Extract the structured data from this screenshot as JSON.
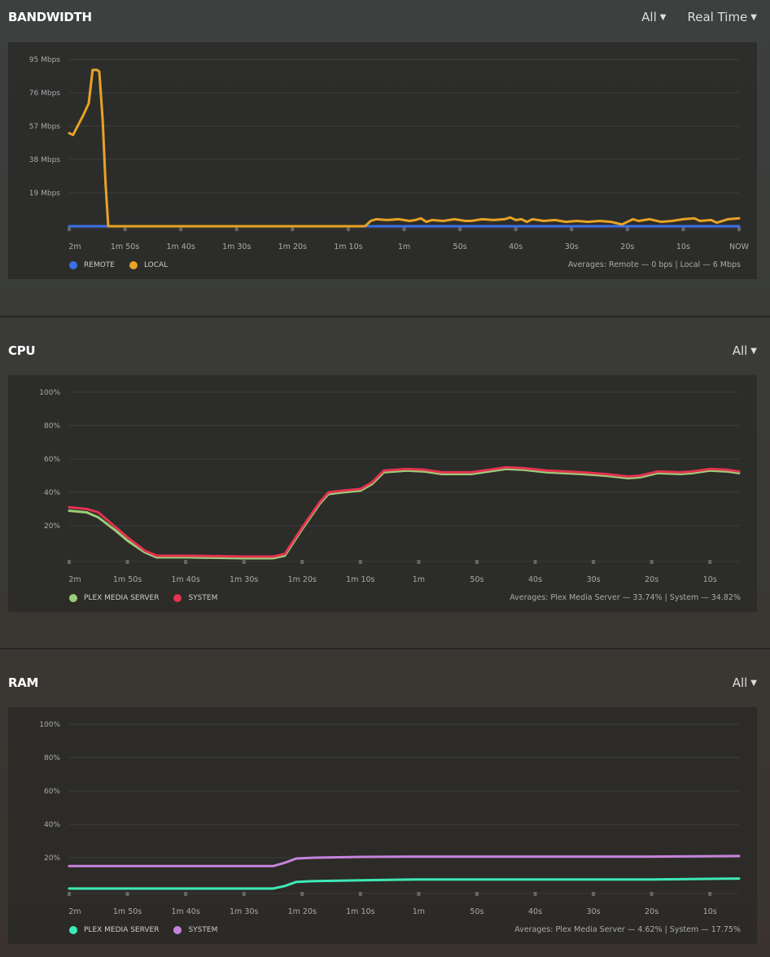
{
  "sections": [
    {
      "title": "BANDWIDTH",
      "dropdowns": [
        "All",
        "Real Time"
      ],
      "averages": "Averages: Remote — 0 bps | Local — 6 Mbps",
      "legend": [
        {
          "label": "REMOTE",
          "color": "#3b6fe8"
        },
        {
          "label": "LOCAL",
          "color": "#e8a225"
        }
      ]
    },
    {
      "title": "CPU",
      "dropdowns": [
        "All"
      ],
      "averages": "Averages: Plex Media Server — 33.74% | System — 34.82%",
      "legend": [
        {
          "label": "PLEX MEDIA SERVER",
          "color": "#9bcd7a"
        },
        {
          "label": "SYSTEM",
          "color": "#e3334f"
        }
      ]
    },
    {
      "title": "RAM",
      "dropdowns": [
        "All"
      ],
      "averages": "Averages: Plex Media Server — 4.62% | System — 17.75%",
      "legend": [
        {
          "label": "PLEX MEDIA SERVER",
          "color": "#3fe8b6"
        },
        {
          "label": "SYSTEM",
          "color": "#c584dc"
        }
      ]
    }
  ],
  "chart_data": [
    {
      "type": "line",
      "title": "BANDWIDTH",
      "ylabel": "Mbps",
      "ylim": [
        0,
        95
      ],
      "yticks": [
        {
          "v": 19,
          "label": "19 Mbps"
        },
        {
          "v": 38,
          "label": "38 Mbps"
        },
        {
          "v": 57,
          "label": "57 Mbps"
        },
        {
          "v": 76,
          "label": "76 Mbps"
        },
        {
          "v": 95,
          "label": "95 Mbps"
        }
      ],
      "xlim": [
        120,
        0
      ],
      "xticks": [
        {
          "v": 120,
          "label": "2m"
        },
        {
          "v": 110,
          "label": "1m 50s"
        },
        {
          "v": 100,
          "label": "1m 40s"
        },
        {
          "v": 90,
          "label": "1m 30s"
        },
        {
          "v": 80,
          "label": "1m 20s"
        },
        {
          "v": 70,
          "label": "1m 10s"
        },
        {
          "v": 60,
          "label": "1m"
        },
        {
          "v": 50,
          "label": "50s"
        },
        {
          "v": 40,
          "label": "40s"
        },
        {
          "v": 30,
          "label": "30s"
        },
        {
          "v": 20,
          "label": "20s"
        },
        {
          "v": 10,
          "label": "10s"
        },
        {
          "v": 0,
          "label": "NOW"
        }
      ],
      "series": [
        {
          "name": "REMOTE",
          "color": "#3b6fe8",
          "points": [
            [
              120,
              0
            ],
            [
              0,
              0
            ]
          ]
        },
        {
          "name": "LOCAL",
          "color": "#e8a225",
          "points": [
            [
              120,
              53
            ],
            [
              119.3,
              52
            ],
            [
              118.5,
              57
            ],
            [
              117.5,
              63
            ],
            [
              116.5,
              70
            ],
            [
              115.8,
              89
            ],
            [
              115,
              89
            ],
            [
              114.6,
              88
            ],
            [
              114,
              60
            ],
            [
              113.5,
              25
            ],
            [
              113,
              0
            ],
            [
              67,
              0
            ],
            [
              66,
              3
            ],
            [
              65,
              4
            ],
            [
              63,
              3.5
            ],
            [
              61,
              4
            ],
            [
              59,
              3
            ],
            [
              58,
              3.5
            ],
            [
              57,
              4.5
            ],
            [
              56,
              2.5
            ],
            [
              55,
              3.5
            ],
            [
              53,
              3
            ],
            [
              51,
              4
            ],
            [
              49,
              3
            ],
            [
              48,
              3
            ],
            [
              46,
              4
            ],
            [
              44,
              3.5
            ],
            [
              42,
              4
            ],
            [
              41,
              5
            ],
            [
              40,
              3.5
            ],
            [
              39,
              4
            ],
            [
              38,
              2.5
            ],
            [
              37,
              4
            ],
            [
              35,
              3
            ],
            [
              33,
              3.5
            ],
            [
              31,
              2.5
            ],
            [
              29,
              3
            ],
            [
              27,
              2.5
            ],
            [
              25,
              3
            ],
            [
              23,
              2.5
            ],
            [
              21,
              1
            ],
            [
              19,
              4
            ],
            [
              18,
              3
            ],
            [
              16,
              4
            ],
            [
              14,
              2.5
            ],
            [
              12,
              3
            ],
            [
              10,
              4
            ],
            [
              8,
              4.5
            ],
            [
              7,
              3
            ],
            [
              5,
              3.5
            ],
            [
              4,
              2
            ],
            [
              2,
              4
            ],
            [
              0,
              4.5
            ]
          ]
        }
      ]
    },
    {
      "type": "line",
      "title": "CPU",
      "ylabel": "%",
      "ylim": [
        0,
        100
      ],
      "yticks": [
        {
          "v": 20,
          "label": "20%"
        },
        {
          "v": 40,
          "label": "40%"
        },
        {
          "v": 60,
          "label": "60%"
        },
        {
          "v": 80,
          "label": "80%"
        },
        {
          "v": 100,
          "label": "100%"
        }
      ],
      "xlim": [
        120,
        5
      ],
      "xticks": [
        {
          "v": 120,
          "label": "2m"
        },
        {
          "v": 110,
          "label": "1m 50s"
        },
        {
          "v": 100,
          "label": "1m 40s"
        },
        {
          "v": 90,
          "label": "1m 30s"
        },
        {
          "v": 80,
          "label": "1m 20s"
        },
        {
          "v": 70,
          "label": "1m 10s"
        },
        {
          "v": 60,
          "label": "1m"
        },
        {
          "v": 50,
          "label": "50s"
        },
        {
          "v": 40,
          "label": "40s"
        },
        {
          "v": 30,
          "label": "30s"
        },
        {
          "v": 20,
          "label": "20s"
        },
        {
          "v": 10,
          "label": "10s"
        }
      ],
      "series": [
        {
          "name": "PLEX MEDIA SERVER",
          "color": "#9bcd7a",
          "points": [
            [
              120,
              29
            ],
            [
              117,
              28
            ],
            [
              115,
              25
            ],
            [
              112,
              17
            ],
            [
              110,
              11
            ],
            [
              107,
              4
            ],
            [
              105,
              1
            ],
            [
              100,
              1
            ],
            [
              90,
              0.5
            ],
            [
              85,
              0.5
            ],
            [
              83,
              2
            ],
            [
              80,
              18
            ],
            [
              77,
              33
            ],
            [
              75.5,
              39
            ],
            [
              73,
              40
            ],
            [
              70,
              41
            ],
            [
              68,
              45
            ],
            [
              66,
              52
            ],
            [
              62,
              53
            ],
            [
              59,
              52.5
            ],
            [
              56,
              51
            ],
            [
              51,
              51
            ],
            [
              48,
              52.5
            ],
            [
              45,
              54
            ],
            [
              42,
              53.5
            ],
            [
              38,
              52
            ],
            [
              32,
              51
            ],
            [
              28,
              50
            ],
            [
              24,
              48.5
            ],
            [
              22,
              49
            ],
            [
              19,
              51.5
            ],
            [
              15,
              51
            ],
            [
              13,
              51.5
            ],
            [
              10,
              53
            ],
            [
              7,
              52.5
            ],
            [
              5,
              51.5
            ]
          ]
        },
        {
          "name": "SYSTEM",
          "color": "#e3334f",
          "points": [
            [
              120,
              31
            ],
            [
              117,
              30
            ],
            [
              115,
              28
            ],
            [
              112,
              19
            ],
            [
              110,
              13
            ],
            [
              107,
              5
            ],
            [
              105,
              2
            ],
            [
              100,
              2
            ],
            [
              90,
              1.5
            ],
            [
              85,
              1.5
            ],
            [
              83,
              3
            ],
            [
              80,
              19
            ],
            [
              77,
              34
            ],
            [
              75.5,
              40
            ],
            [
              73,
              41
            ],
            [
              70,
              42
            ],
            [
              68,
              46
            ],
            [
              66,
              53
            ],
            [
              62,
              54
            ],
            [
              59,
              53.5
            ],
            [
              56,
              52
            ],
            [
              51,
              52
            ],
            [
              48,
              53.5
            ],
            [
              45,
              55
            ],
            [
              42,
              54.5
            ],
            [
              38,
              53
            ],
            [
              32,
              52
            ],
            [
              28,
              51
            ],
            [
              24,
              49.5
            ],
            [
              22,
              50
            ],
            [
              19,
              52.5
            ],
            [
              15,
              52
            ],
            [
              13,
              52.5
            ],
            [
              10,
              54
            ],
            [
              7,
              53.5
            ],
            [
              5,
              52.5
            ]
          ]
        }
      ]
    },
    {
      "type": "line",
      "title": "RAM",
      "ylabel": "%",
      "ylim": [
        0,
        100
      ],
      "yticks": [
        {
          "v": 20,
          "label": "20%"
        },
        {
          "v": 40,
          "label": "40%"
        },
        {
          "v": 60,
          "label": "60%"
        },
        {
          "v": 80,
          "label": "80%"
        },
        {
          "v": 100,
          "label": "100%"
        }
      ],
      "xlim": [
        120,
        5
      ],
      "xticks": [
        {
          "v": 120,
          "label": "2m"
        },
        {
          "v": 110,
          "label": "1m 50s"
        },
        {
          "v": 100,
          "label": "1m 40s"
        },
        {
          "v": 90,
          "label": "1m 30s"
        },
        {
          "v": 80,
          "label": "1m 20s"
        },
        {
          "v": 70,
          "label": "1m 10s"
        },
        {
          "v": 60,
          "label": "1m"
        },
        {
          "v": 50,
          "label": "50s"
        },
        {
          "v": 40,
          "label": "40s"
        },
        {
          "v": 30,
          "label": "30s"
        },
        {
          "v": 20,
          "label": "20s"
        },
        {
          "v": 10,
          "label": "10s"
        }
      ],
      "series": [
        {
          "name": "PLEX MEDIA SERVER",
          "color": "#3fe8b6",
          "points": [
            [
              120,
              1.5
            ],
            [
              85,
              1.5
            ],
            [
              83,
              3
            ],
            [
              81,
              5.5
            ],
            [
              78,
              6
            ],
            [
              70,
              6.5
            ],
            [
              60,
              7
            ],
            [
              40,
              7
            ],
            [
              20,
              7
            ],
            [
              5,
              7.5
            ]
          ]
        },
        {
          "name": "SYSTEM",
          "color": "#c584dc",
          "points": [
            [
              120,
              15
            ],
            [
              85,
              15
            ],
            [
              83,
              17
            ],
            [
              81,
              19.5
            ],
            [
              78,
              20
            ],
            [
              70,
              20.5
            ],
            [
              60,
              20.7
            ],
            [
              40,
              20.7
            ],
            [
              20,
              20.7
            ],
            [
              5,
              21
            ]
          ]
        }
      ]
    }
  ]
}
